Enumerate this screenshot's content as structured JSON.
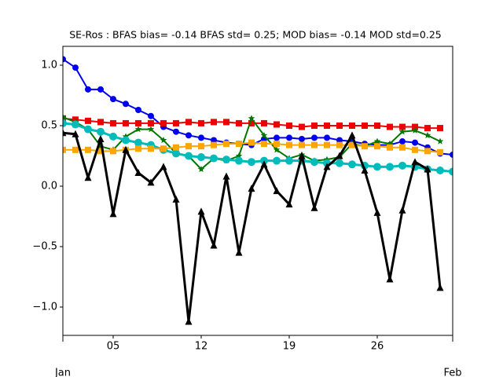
{
  "chart_data": {
    "type": "line",
    "title": "SE-Ros   : BFAS bias= -0.14 BFAS std= 0.25; MOD bias= -0.14 MOD std=0.25",
    "x": [
      1,
      2,
      3,
      4,
      5,
      6,
      7,
      8,
      9,
      10,
      11,
      12,
      13,
      14,
      15,
      16,
      17,
      18,
      19,
      20,
      21,
      22,
      23,
      24,
      25,
      26,
      27,
      28,
      29,
      30,
      31,
      32
    ],
    "xlim": [
      1,
      32
    ],
    "xticks": [
      {
        "value": 5,
        "label": "05"
      },
      {
        "value": 12,
        "label": "12"
      },
      {
        "value": 19,
        "label": "19"
      },
      {
        "value": 26,
        "label": "26"
      }
    ],
    "month_labels": [
      {
        "value": 1,
        "label": "Jan"
      },
      {
        "value": 32,
        "label": "Feb"
      }
    ],
    "ylim": [
      -1.234,
      1.156
    ],
    "yticks": [
      {
        "value": -1.0,
        "label": "−1.0"
      },
      {
        "value": -0.5,
        "label": "−0.5"
      },
      {
        "value": 0.0,
        "label": "0.0"
      },
      {
        "value": 0.5,
        "label": "0.5"
      },
      {
        "value": 1.0,
        "label": "1.0"
      }
    ],
    "series": [
      {
        "color": "#0000ee",
        "marker": "circle",
        "values": [
          1.05,
          0.98,
          0.8,
          0.8,
          0.72,
          0.68,
          0.63,
          0.58,
          0.49,
          0.45,
          0.42,
          0.4,
          0.38,
          0.36,
          0.35,
          0.34,
          0.39,
          0.4,
          0.4,
          0.39,
          0.4,
          0.4,
          0.38,
          0.37,
          0.35,
          0.34,
          0.34,
          0.37,
          0.36,
          0.32,
          0.27,
          0.26
        ]
      },
      {
        "color": "#ee0000",
        "marker": "square",
        "values": [
          0.56,
          0.55,
          0.54,
          0.53,
          0.52,
          0.52,
          0.52,
          0.52,
          0.52,
          0.52,
          0.53,
          0.52,
          0.53,
          0.53,
          0.52,
          0.52,
          0.52,
          0.51,
          0.5,
          0.49,
          0.5,
          0.5,
          0.5,
          0.5,
          0.5,
          0.5,
          0.49,
          0.49,
          0.49,
          0.48,
          0.48,
          null
        ]
      },
      {
        "color": "#007700",
        "marker": "star",
        "values": [
          0.57,
          0.53,
          0.47,
          0.33,
          0.3,
          0.41,
          0.47,
          0.47,
          0.38,
          0.27,
          0.25,
          0.14,
          0.23,
          0.21,
          0.25,
          0.56,
          0.42,
          0.3,
          0.23,
          0.26,
          0.21,
          0.22,
          0.24,
          0.35,
          0.33,
          0.37,
          0.35,
          0.45,
          0.46,
          0.42,
          0.37,
          null
        ]
      },
      {
        "color": "#00bbbb",
        "marker": "circle",
        "values": [
          0.52,
          0.51,
          0.47,
          0.45,
          0.41,
          0.38,
          0.36,
          0.34,
          0.3,
          0.27,
          0.25,
          0.24,
          0.23,
          0.22,
          0.21,
          0.2,
          0.21,
          0.21,
          0.21,
          0.21,
          0.2,
          0.19,
          0.19,
          0.18,
          0.17,
          0.16,
          0.16,
          0.17,
          0.16,
          0.14,
          0.13,
          0.12
        ]
      },
      {
        "color": "#ffa500",
        "marker": "square",
        "values": [
          0.3,
          0.3,
          0.3,
          0.29,
          0.29,
          0.3,
          0.31,
          0.31,
          0.31,
          0.32,
          0.33,
          0.33,
          0.34,
          0.35,
          0.35,
          0.36,
          0.35,
          0.35,
          0.34,
          0.34,
          0.34,
          0.34,
          0.34,
          0.34,
          0.33,
          0.33,
          0.32,
          0.32,
          0.3,
          0.29,
          0.28,
          null
        ]
      },
      {
        "color": "#000000",
        "marker": "triangle",
        "values": [
          0.44,
          0.43,
          0.07,
          0.39,
          -0.23,
          0.3,
          0.11,
          0.03,
          0.16,
          -0.11,
          -1.12,
          -0.21,
          -0.49,
          0.08,
          -0.55,
          -0.02,
          0.18,
          -0.04,
          -0.15,
          0.25,
          -0.18,
          0.16,
          0.25,
          0.42,
          0.13,
          -0.22,
          -0.77,
          -0.2,
          0.2,
          0.14,
          -0.84,
          null
        ]
      }
    ]
  }
}
